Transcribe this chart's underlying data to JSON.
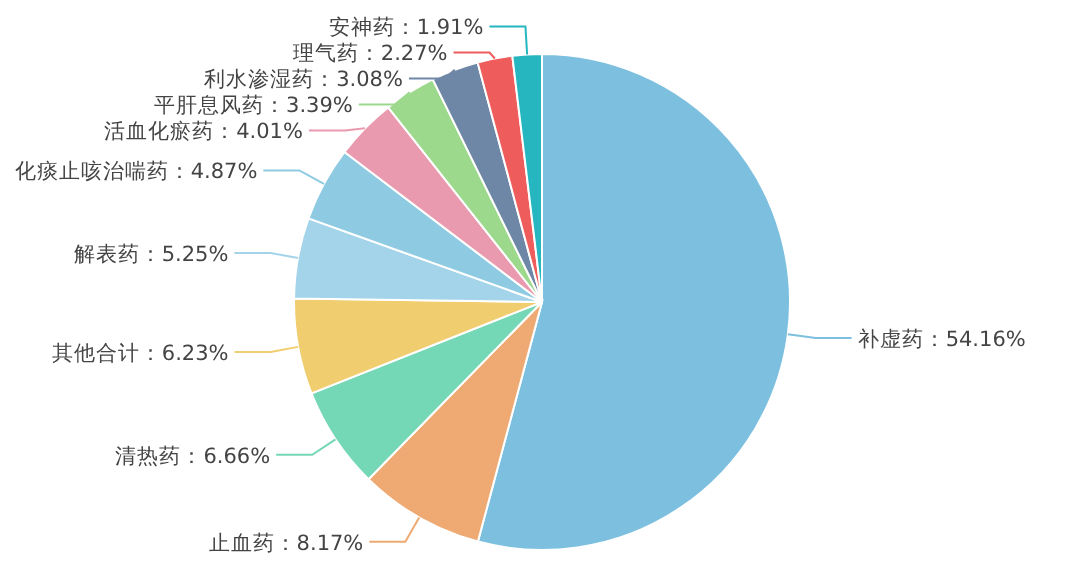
{
  "chart_data": {
    "type": "pie",
    "categories": [
      "补虚药",
      "止血药",
      "清热药",
      "其他合计",
      "解表药",
      "化痰止咳治喘药",
      "活血化瘀药",
      "平肝息风药",
      "利水渗湿药",
      "理气药",
      "安神药"
    ],
    "values": [
      54.16,
      8.17,
      6.66,
      6.23,
      5.25,
      4.87,
      4.01,
      3.39,
      3.08,
      2.27,
      1.91
    ],
    "value_labels": [
      "54.16%",
      "8.17%",
      "6.66%",
      "6.23%",
      "5.25%",
      "4.87%",
      "4.01%",
      "3.39%",
      "3.08%",
      "2.27%",
      "1.91%"
    ],
    "colors": [
      "#7cbfdf",
      "#eeaa72",
      "#74d7b5",
      "#f0cd6e",
      "#a3d4ea",
      "#8ecbe3",
      "#ea9aaf",
      "#9cd98c",
      "#6f87a6",
      "#ee5c5c",
      "#26b6bf"
    ]
  }
}
